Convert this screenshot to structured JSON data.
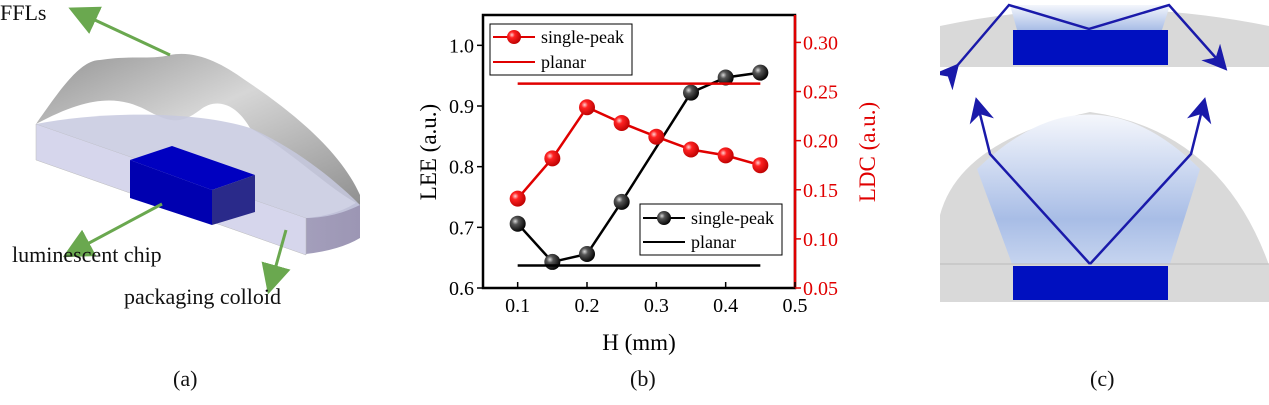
{
  "panels": {
    "a": {
      "caption": "(a)",
      "labels": {
        "ffls": "FFLs",
        "chip": "luminescent chip",
        "colloid": "packaging colloid"
      },
      "colors": {
        "arrow": "#6aa84f",
        "chip": "#0000b8",
        "colloid": "#c9c9e0",
        "lens": "#a0a0a0"
      }
    },
    "b": {
      "caption": "(b)"
    },
    "c": {
      "caption": "(c)",
      "colors": {
        "ray": "#1a1aaa",
        "chip": "#0010c0",
        "lens": "#d9d9d9",
        "glow": "#a8bde6"
      }
    }
  },
  "chart_data": {
    "type": "line",
    "xlabel": "H (mm)",
    "ylabel_left": "LEE (a.u.)",
    "ylabel_right": "LDC (a.u.)",
    "xlim": [
      0.05,
      0.5
    ],
    "ylim_left": [
      0.6,
      1.05
    ],
    "ylim_right": [
      0.05,
      0.3279
    ],
    "xticks": [
      "0.1",
      "0.2",
      "0.3",
      "0.4",
      "0.5"
    ],
    "yticks_left": [
      "0.6",
      "0.7",
      "0.8",
      "0.9",
      "1.0"
    ],
    "yticks_right": [
      "0.05",
      "0.10",
      "0.15",
      "0.20",
      "0.25",
      "0.30"
    ],
    "grid": false,
    "legends": [
      {
        "placement": "top-left",
        "entries": [
          "single-peak",
          "planar"
        ],
        "color": "#e00000"
      },
      {
        "placement": "bottom-right",
        "entries": [
          "single-peak",
          "planar"
        ],
        "color": "#000000"
      }
    ],
    "series": [
      {
        "name": "LEE single-peak",
        "axis": "left",
        "color": "#000000",
        "x": [
          0.1,
          0.15,
          0.2,
          0.25,
          0.35,
          0.4,
          0.45
        ],
        "values": [
          0.706,
          0.643,
          0.656,
          0.742,
          0.922,
          0.947,
          0.955
        ]
      },
      {
        "name": "LEE planar",
        "axis": "left",
        "color": "#000000",
        "style": "line",
        "x": [
          0.1,
          0.45
        ],
        "values": [
          0.637,
          0.637
        ]
      },
      {
        "name": "LDC single-peak",
        "axis": "right",
        "color": "#e00000",
        "x": [
          0.1,
          0.15,
          0.2,
          0.25,
          0.3,
          0.35,
          0.4,
          0.45
        ],
        "values": [
          0.141,
          0.182,
          0.234,
          0.218,
          0.204,
          0.191,
          0.185,
          0.175
        ]
      },
      {
        "name": "LDC planar",
        "axis": "right",
        "color": "#e00000",
        "style": "line",
        "x": [
          0.1,
          0.45
        ],
        "values": [
          0.258,
          0.258
        ]
      }
    ]
  }
}
